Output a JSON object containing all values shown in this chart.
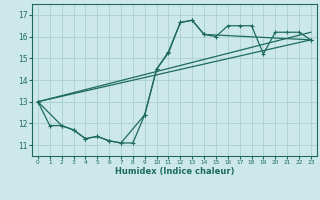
{
  "xlabel": "Humidex (Indice chaleur)",
  "ylabel": "",
  "bg_color": "#cce8e8",
  "grid_color": "#aacfcf",
  "line_color": "#1e6b5e",
  "xlim": [
    -0.5,
    23.5
  ],
  "ylim": [
    10.5,
    17.5
  ],
  "xticks": [
    0,
    1,
    2,
    3,
    4,
    5,
    6,
    7,
    8,
    9,
    10,
    11,
    12,
    13,
    14,
    15,
    16,
    17,
    18,
    19,
    20,
    21,
    22,
    23
  ],
  "yticks": [
    11,
    12,
    13,
    14,
    15,
    16,
    17
  ],
  "line1_x": [
    0,
    1,
    2,
    3,
    4,
    5,
    6,
    7,
    8,
    9,
    10,
    11,
    12,
    13,
    14,
    15,
    16,
    17,
    18,
    19,
    20,
    21,
    22,
    23
  ],
  "line1_y": [
    13.0,
    11.9,
    11.9,
    11.7,
    11.3,
    11.4,
    11.2,
    11.1,
    11.1,
    12.4,
    14.5,
    15.25,
    16.65,
    16.75,
    16.1,
    16.0,
    16.5,
    16.5,
    16.5,
    15.2,
    16.2,
    16.2,
    16.2,
    15.85
  ],
  "line2_x": [
    0,
    2,
    3,
    4,
    5,
    6,
    7,
    9,
    10,
    11,
    12,
    13,
    14,
    23
  ],
  "line2_y": [
    13.0,
    11.9,
    11.7,
    11.3,
    11.4,
    11.2,
    11.1,
    12.4,
    14.5,
    15.3,
    16.65,
    16.75,
    16.1,
    15.85
  ],
  "line3_x": [
    0,
    23
  ],
  "line3_y": [
    13.0,
    15.85
  ],
  "line4_x": [
    0,
    23
  ],
  "line4_y": [
    13.0,
    16.2
  ],
  "figw": 3.2,
  "figh": 2.0,
  "dpi": 100
}
